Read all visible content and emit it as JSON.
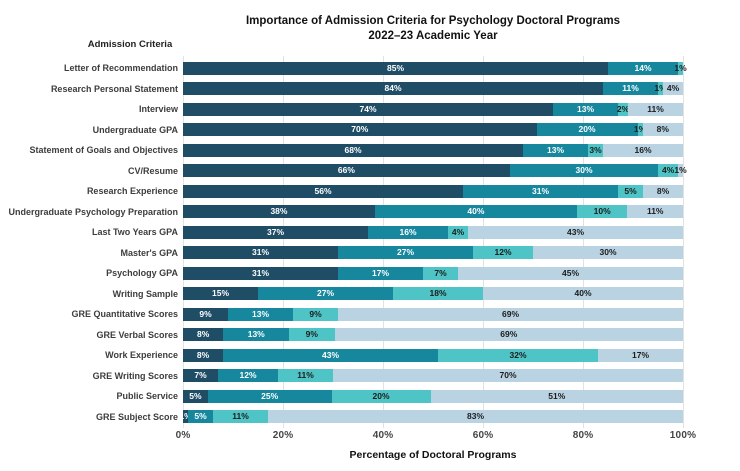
{
  "chart_data": {
    "type": "bar",
    "orientation": "horizontal-stacked",
    "title_line1": "Importance of Admission Criteria for Psychology Doctoral Programs",
    "title_line2": "2022–23 Academic Year",
    "category_header": "Admission Criteria",
    "xlabel": "Percentage of Doctoral Programs",
    "x_ticks": [
      "0%",
      "20%",
      "40%",
      "60%",
      "80%",
      "100%"
    ],
    "xlim": [
      0,
      100
    ],
    "grid": "vertical-light-gray",
    "legend": "none",
    "categories": [
      "Letter of Recommendation",
      "Research Personal Statement",
      "Interview",
      "Undergraduate GPA",
      "Statement of Goals and Objectives",
      "CV/Resume",
      "Research Experience",
      "Undergraduate Psychology Preparation",
      "Last Two Years GPA",
      "Master's GPA",
      "Psychology GPA",
      "Writing Sample",
      "GRE Quantitative Scores",
      "GRE Verbal Scores",
      "Work Experience",
      "GRE Writing Scores",
      "Public Service",
      "GRE Subject Score"
    ],
    "series": [
      {
        "name": "segment-1-dark-navy",
        "color": "#1F4D66",
        "values": [
          85,
          84,
          74,
          70,
          68,
          66,
          56,
          38,
          37,
          31,
          31,
          15,
          9,
          8,
          8,
          7,
          5,
          1
        ]
      },
      {
        "name": "segment-2-teal",
        "color": "#17879E",
        "values": [
          14,
          11,
          13,
          20,
          13,
          30,
          31,
          40,
          16,
          27,
          17,
          27,
          13,
          13,
          43,
          12,
          25,
          5
        ]
      },
      {
        "name": "segment-3-light-teal",
        "color": "#4FC4C6",
        "values": [
          1,
          1,
          2,
          1,
          3,
          4,
          5,
          10,
          4,
          12,
          7,
          18,
          9,
          9,
          32,
          11,
          20,
          11
        ]
      },
      {
        "name": "segment-4-pale-blue",
        "color": "#B9D3E2",
        "values": [
          0,
          4,
          11,
          8,
          16,
          1,
          8,
          11,
          43,
          30,
          45,
          40,
          69,
          69,
          17,
          70,
          51,
          83
        ]
      }
    ]
  },
  "layout_colors": {
    "background": "#ffffff",
    "gridline": "#e2e2e2",
    "bar_label_light": "#ffffff",
    "bar_label_dark": "#1c1c1c"
  }
}
